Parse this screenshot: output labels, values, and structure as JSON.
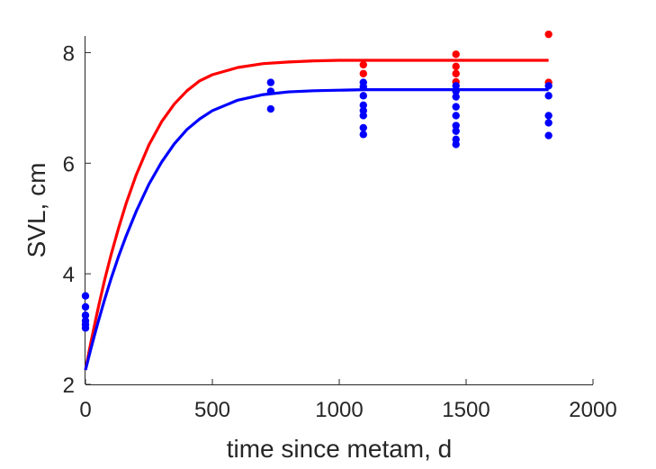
{
  "chart_data": {
    "type": "scatter",
    "xlabel": "time since metam, d",
    "ylabel": "SVL, cm",
    "xlim": [
      0,
      2000
    ],
    "ylim": [
      2,
      8.3
    ],
    "xticks": [
      0,
      500,
      1000,
      1500,
      2000
    ],
    "yticks": [
      2,
      4,
      6,
      8
    ],
    "grid": false,
    "legend": "none",
    "series": [
      {
        "color": "#ff0000",
        "curve": {
          "x": [
            0,
            10,
            20,
            35,
            50,
            75,
            100,
            130,
            160,
            200,
            250,
            300,
            350,
            400,
            450,
            500,
            600,
            700,
            800,
            900,
            1000,
            1100,
            1200,
            1300,
            1400,
            1500,
            1600,
            1700,
            1825
          ],
          "y": [
            2.26,
            2.5,
            2.73,
            3.06,
            3.38,
            3.88,
            4.33,
            4.82,
            5.27,
            5.79,
            6.33,
            6.75,
            7.07,
            7.31,
            7.49,
            7.6,
            7.73,
            7.8,
            7.83,
            7.85,
            7.86,
            7.86,
            7.86,
            7.86,
            7.86,
            7.86,
            7.86,
            7.86,
            7.86
          ]
        },
        "points": [
          {
            "x": 1095,
            "y": 7.78
          },
          {
            "x": 1095,
            "y": 7.62
          },
          {
            "x": 1460,
            "y": 7.97
          },
          {
            "x": 1460,
            "y": 7.75
          },
          {
            "x": 1460,
            "y": 7.62
          },
          {
            "x": 1460,
            "y": 7.47
          },
          {
            "x": 1825,
            "y": 8.33
          },
          {
            "x": 1825,
            "y": 7.46
          }
        ]
      },
      {
        "color": "#0000ff",
        "curve": {
          "x": [
            0,
            10,
            20,
            35,
            50,
            75,
            100,
            130,
            160,
            200,
            250,
            300,
            350,
            400,
            450,
            500,
            600,
            700,
            800,
            900,
            1000,
            1100,
            1200,
            1300,
            1400,
            1500,
            1600,
            1700,
            1825
          ],
          "y": [
            2.26,
            2.44,
            2.62,
            2.88,
            3.13,
            3.53,
            3.9,
            4.31,
            4.68,
            5.13,
            5.62,
            6.02,
            6.35,
            6.61,
            6.8,
            6.95,
            7.14,
            7.24,
            7.29,
            7.31,
            7.32,
            7.33,
            7.33,
            7.33,
            7.33,
            7.33,
            7.33,
            7.33,
            7.33
          ]
        },
        "points": [
          {
            "x": 0,
            "y": 3.6
          },
          {
            "x": 0,
            "y": 3.4
          },
          {
            "x": 0,
            "y": 3.25
          },
          {
            "x": 0,
            "y": 3.15
          },
          {
            "x": 0,
            "y": 3.08
          },
          {
            "x": 0,
            "y": 3.02
          },
          {
            "x": 730,
            "y": 7.46
          },
          {
            "x": 730,
            "y": 7.3
          },
          {
            "x": 730,
            "y": 6.98
          },
          {
            "x": 1095,
            "y": 7.46
          },
          {
            "x": 1095,
            "y": 7.38
          },
          {
            "x": 1095,
            "y": 7.22
          },
          {
            "x": 1095,
            "y": 7.05
          },
          {
            "x": 1095,
            "y": 6.95
          },
          {
            "x": 1095,
            "y": 6.86
          },
          {
            "x": 1095,
            "y": 6.64
          },
          {
            "x": 1095,
            "y": 6.52
          },
          {
            "x": 1460,
            "y": 7.4
          },
          {
            "x": 1460,
            "y": 7.3
          },
          {
            "x": 1460,
            "y": 7.2
          },
          {
            "x": 1460,
            "y": 7.02
          },
          {
            "x": 1460,
            "y": 6.86
          },
          {
            "x": 1460,
            "y": 6.68
          },
          {
            "x": 1460,
            "y": 6.58
          },
          {
            "x": 1460,
            "y": 6.43
          },
          {
            "x": 1460,
            "y": 6.34
          },
          {
            "x": 1825,
            "y": 7.4
          },
          {
            "x": 1825,
            "y": 7.22
          },
          {
            "x": 1825,
            "y": 6.86
          },
          {
            "x": 1825,
            "y": 6.73
          },
          {
            "x": 1825,
            "y": 6.5
          }
        ]
      }
    ]
  }
}
